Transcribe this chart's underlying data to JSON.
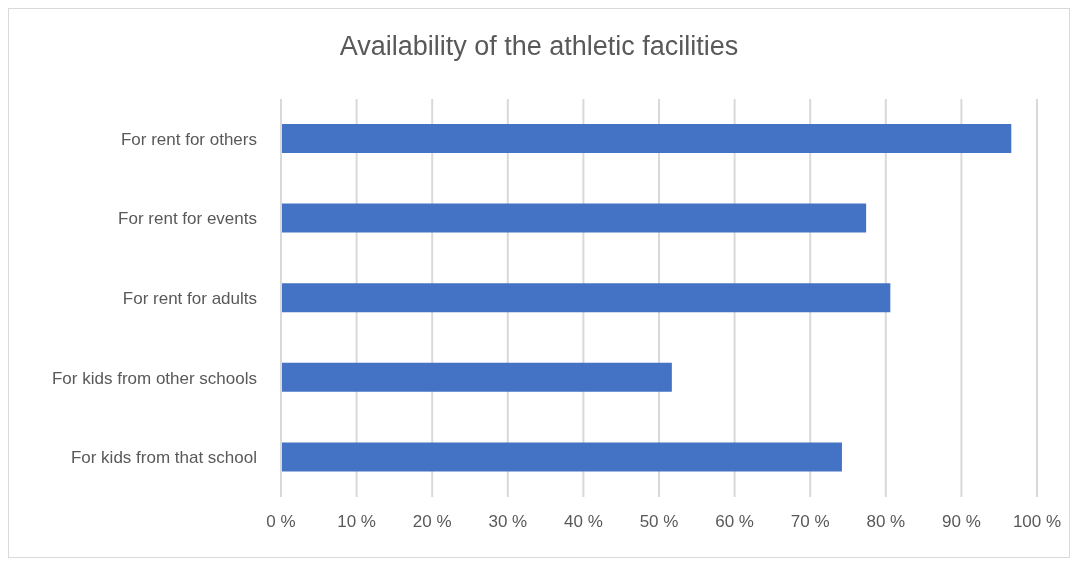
{
  "chart_data": {
    "type": "bar",
    "orientation": "horizontal",
    "title": "Availability of the athletic facilities",
    "categories": [
      "For rent for others",
      "For rent for events",
      "For rent for adults",
      "For kids from other schools",
      "For kids from that school"
    ],
    "values": [
      96.6,
      77.4,
      80.6,
      51.7,
      74.2
    ],
    "color": "#4472c4",
    "xlim": [
      0,
      100
    ],
    "xticks": [
      {
        "value": 0,
        "label": "0 %"
      },
      {
        "value": 10,
        "label": "10 %"
      },
      {
        "value": 20,
        "label": "20 %"
      },
      {
        "value": 30,
        "label": "30 %"
      },
      {
        "value": 40,
        "label": "40 %"
      },
      {
        "value": 50,
        "label": "50 %"
      },
      {
        "value": 60,
        "label": "60 %"
      },
      {
        "value": 70,
        "label": "70 %"
      },
      {
        "value": 80,
        "label": "80 %"
      },
      {
        "value": 90,
        "label": "90 %"
      },
      {
        "value": 100,
        "label": "100 %"
      }
    ],
    "grid": "x",
    "legend": false
  }
}
